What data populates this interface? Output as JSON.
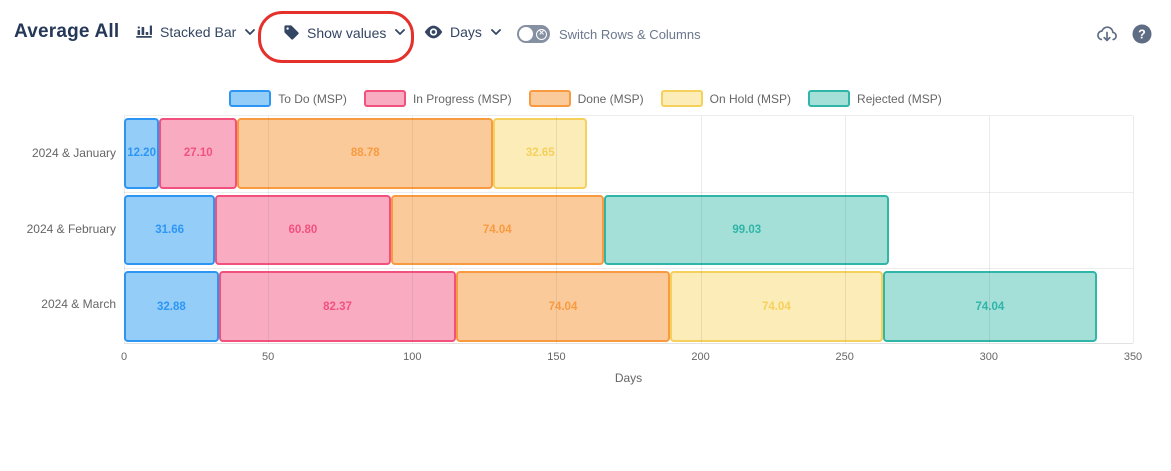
{
  "header": {
    "title": "Average All",
    "chart_type_label": "Stacked Bar",
    "show_values_label": "Show values",
    "unit_label": "Days",
    "switch_label": "Switch Rows & Columns"
  },
  "icons": {
    "bar_chart": "bar-chart-icon",
    "tag": "tag-icon",
    "eye": "eye-icon",
    "chevron": "chevron-down-icon",
    "cloud_download": "cloud-download-icon",
    "help": "question-mark-icon"
  },
  "annotation": {
    "shape": "red-ellipse-highlight",
    "color": "#e5312b"
  },
  "chart_data": {
    "type": "bar",
    "orientation": "horizontal",
    "stacked": true,
    "title": "Average All",
    "xlabel": "Days",
    "xlim": [
      0,
      350
    ],
    "xticks": [
      0,
      50,
      100,
      150,
      200,
      250,
      300,
      350
    ],
    "grid": true,
    "legend_position": "top",
    "value_decimals": 2,
    "categories": [
      "2024 & January",
      "2024 & February",
      "2024 & March"
    ],
    "series": [
      {
        "name": "To Do (MSP)",
        "fill": "#94CDF7",
        "stroke": "#2D96F5",
        "values": [
          12.2,
          31.66,
          32.88
        ]
      },
      {
        "name": "In Progress (MSP)",
        "fill": "#F9ACC1",
        "stroke": "#F2517E",
        "values": [
          27.1,
          60.8,
          82.37
        ]
      },
      {
        "name": "Done (MSP)",
        "fill": "#FBCA9B",
        "stroke": "#F89B40",
        "values": [
          88.78,
          74.04,
          74.04
        ]
      },
      {
        "name": "On Hold (MSP)",
        "fill": "#FCECB7",
        "stroke": "#F6D05C",
        "values": [
          32.65,
          0,
          74.04
        ]
      },
      {
        "name": "Rejected (MSP)",
        "fill": "#A4DFD8",
        "stroke": "#30B5A9",
        "values": [
          0,
          99.03,
          74.04
        ]
      }
    ]
  }
}
